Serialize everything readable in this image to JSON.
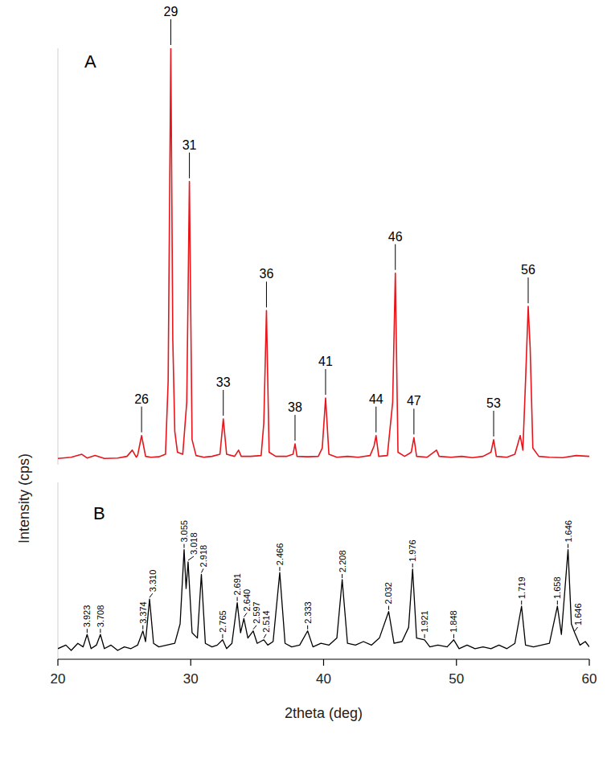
{
  "chart_data": [
    {
      "type": "line",
      "title": "A",
      "xlim": [
        20,
        60
      ],
      "ylim": [
        0,
        100
      ],
      "tick_labels": false,
      "series": [
        {
          "color": "#e8151b",
          "x": [
            20.0,
            21.0,
            21.8,
            22.2,
            22.8,
            23.5,
            24.5,
            25.2,
            25.6,
            25.9,
            26.0,
            26.3,
            26.6,
            27.0,
            27.6,
            28.1,
            28.3,
            28.5,
            28.65,
            28.8,
            29.0,
            29.4,
            29.7,
            29.9,
            30.1,
            30.4,
            31.0,
            31.6,
            32.2,
            32.45,
            32.7,
            33.3,
            33.6,
            33.8,
            34.5,
            35.3,
            35.5,
            35.7,
            35.9,
            36.4,
            37.2,
            37.7,
            37.85,
            38.0,
            38.8,
            39.6,
            39.9,
            40.15,
            40.4,
            41.0,
            41.8,
            42.6,
            43.5,
            43.8,
            43.95,
            44.15,
            44.8,
            45.2,
            45.4,
            45.6,
            46.1,
            46.6,
            46.8,
            47.0,
            47.8,
            48.5,
            48.7,
            49.6,
            50.4,
            51.2,
            52.0,
            52.6,
            52.8,
            53.0,
            53.8,
            54.4,
            54.8,
            55.0,
            55.2,
            55.4,
            55.55,
            55.75,
            56.2,
            57.0,
            58.0,
            59.0,
            60.0
          ],
          "values": [
            1.5,
            1.8,
            2.5,
            1.6,
            2.2,
            1.5,
            1.6,
            2.0,
            3.5,
            1.8,
            2.2,
            7,
            2.0,
            1.8,
            1.9,
            2.5,
            20,
            100,
            30,
            8,
            3,
            2.5,
            15,
            68,
            6,
            2.2,
            1.8,
            2.0,
            2.5,
            11,
            2.5,
            2.0,
            3.5,
            2.0,
            2.0,
            2.2,
            10,
            37,
            3,
            2.0,
            2.0,
            2.5,
            5,
            2.0,
            1.9,
            2.0,
            4,
            16,
            2.5,
            1.8,
            2.0,
            1.8,
            2.2,
            4.5,
            7,
            2.0,
            2.2,
            15,
            46,
            3,
            2.0,
            3,
            6.5,
            2.0,
            1.8,
            3.5,
            2.0,
            1.8,
            2.0,
            1.7,
            2.0,
            3,
            6,
            2.0,
            1.8,
            2.5,
            7,
            3.5,
            20,
            38,
            28,
            4,
            2.0,
            1.8,
            1.7,
            2.2,
            2.0
          ]
        }
      ],
      "annotations": [
        {
          "x": 26.3,
          "y": 7,
          "text": "26"
        },
        {
          "x": 28.5,
          "y": 100,
          "text": "29"
        },
        {
          "x": 29.9,
          "y": 68,
          "text": "31"
        },
        {
          "x": 32.45,
          "y": 11,
          "text": "33"
        },
        {
          "x": 35.7,
          "y": 37,
          "text": "36"
        },
        {
          "x": 37.85,
          "y": 5,
          "text": "38"
        },
        {
          "x": 40.15,
          "y": 16,
          "text": "41"
        },
        {
          "x": 43.95,
          "y": 7,
          "text": "44"
        },
        {
          "x": 45.4,
          "y": 46,
          "text": "46"
        },
        {
          "x": 46.8,
          "y": 6.5,
          "text": "47"
        },
        {
          "x": 52.8,
          "y": 6,
          "text": "53"
        },
        {
          "x": 55.4,
          "y": 38,
          "text": "56"
        }
      ]
    },
    {
      "type": "line",
      "title": "B",
      "xlim": [
        20,
        60
      ],
      "ylim": [
        0,
        100
      ],
      "xticks": [
        20,
        30,
        40,
        50,
        60
      ],
      "tick_labels": "x",
      "x_label": "2theta (deg)",
      "y_label": "Intensity (cps)",
      "series": [
        {
          "color": "#000000",
          "x": [
            20.0,
            20.6,
            21.0,
            21.5,
            21.9,
            22.2,
            22.5,
            22.9,
            23.2,
            23.5,
            24.0,
            24.5,
            25.0,
            25.5,
            26.0,
            26.4,
            26.6,
            26.9,
            27.2,
            27.6,
            28.2,
            28.8,
            29.2,
            29.5,
            29.65,
            29.8,
            30.1,
            30.5,
            30.8,
            31.1,
            31.6,
            32.0,
            32.4,
            32.7,
            33.1,
            33.5,
            33.75,
            34.0,
            34.3,
            34.7,
            35.0,
            35.5,
            35.8,
            36.2,
            36.7,
            37.1,
            37.6,
            38.2,
            38.8,
            39.2,
            39.8,
            40.4,
            41.0,
            41.4,
            41.8,
            42.4,
            43.0,
            43.6,
            44.2,
            44.9,
            45.3,
            45.9,
            46.4,
            46.7,
            47.0,
            47.6,
            48.0,
            48.6,
            49.3,
            49.8,
            50.2,
            50.8,
            51.4,
            52.0,
            52.6,
            53.2,
            53.8,
            54.4,
            54.9,
            55.2,
            55.8,
            56.4,
            57.0,
            57.6,
            57.9,
            58.4,
            58.65,
            58.9,
            59.3,
            59.7,
            60.0
          ],
          "values": [
            6,
            8,
            5,
            9,
            7,
            14,
            6,
            8,
            14,
            6,
            8,
            5,
            7,
            6,
            8,
            16,
            10,
            34,
            9,
            7,
            8,
            9,
            20,
            62,
            40,
            55,
            15,
            12,
            48,
            9,
            7,
            8,
            11,
            6,
            9,
            32,
            15,
            23,
            12,
            16,
            9,
            11,
            8,
            10,
            49,
            9,
            7,
            8,
            16,
            7,
            9,
            8,
            12,
            45,
            9,
            8,
            10,
            8,
            12,
            27,
            9,
            10,
            18,
            51,
            12,
            11,
            7,
            8,
            7,
            11,
            6,
            8,
            6,
            7,
            6,
            8,
            6,
            9,
            30,
            8,
            7,
            8,
            9,
            30,
            14,
            62,
            20,
            15,
            8,
            10,
            7
          ]
        }
      ],
      "annotations": [
        {
          "x": 22.2,
          "y": 14,
          "text": "3.923"
        },
        {
          "x": 23.2,
          "y": 14,
          "text": "3.708"
        },
        {
          "x": 26.4,
          "y": 16,
          "text": "3.374"
        },
        {
          "x": 26.9,
          "y": 34,
          "text": "3.310"
        },
        {
          "x": 29.5,
          "y": 62,
          "text": "3.055"
        },
        {
          "x": 29.8,
          "y": 55,
          "text": "3.018"
        },
        {
          "x": 30.8,
          "y": 48,
          "text": "2.918"
        },
        {
          "x": 32.4,
          "y": 11,
          "text": "2.765"
        },
        {
          "x": 33.5,
          "y": 32,
          "text": "2.691"
        },
        {
          "x": 34.0,
          "y": 23,
          "text": "2.640"
        },
        {
          "x": 34.7,
          "y": 16,
          "text": "2.597"
        },
        {
          "x": 35.5,
          "y": 11,
          "text": "2.514"
        },
        {
          "x": 36.7,
          "y": 49,
          "text": "2.466"
        },
        {
          "x": 38.8,
          "y": 16,
          "text": "2.333"
        },
        {
          "x": 41.4,
          "y": 45,
          "text": "2.208"
        },
        {
          "x": 44.9,
          "y": 27,
          "text": "2.032"
        },
        {
          "x": 46.7,
          "y": 51,
          "text": "1.976"
        },
        {
          "x": 47.6,
          "y": 11,
          "text": "1.921"
        },
        {
          "x": 49.8,
          "y": 11,
          "text": "1.848"
        },
        {
          "x": 54.9,
          "y": 30,
          "text": "1.719"
        },
        {
          "x": 57.6,
          "y": 30,
          "text": "1.658"
        },
        {
          "x": 58.4,
          "y": 62,
          "text": "1.646"
        },
        {
          "x": 58.9,
          "y": 15,
          "text": "1.646"
        }
      ]
    }
  ]
}
